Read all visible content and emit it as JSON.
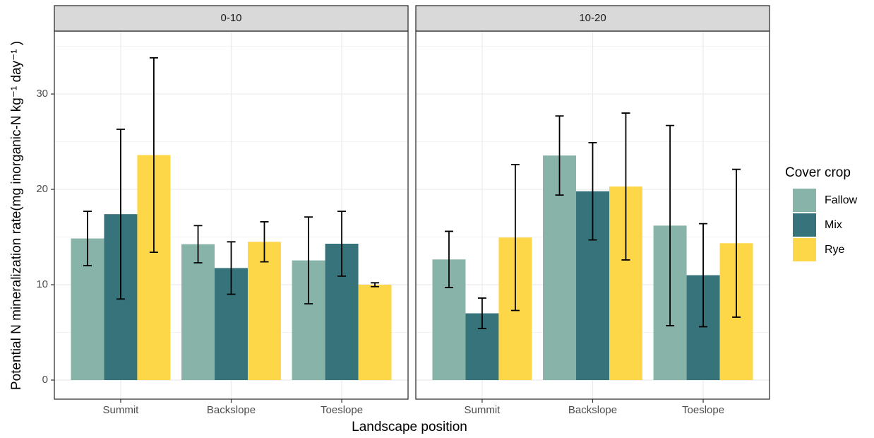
{
  "chart_data": {
    "type": "bar",
    "x_label": "Landscape position",
    "y_label": "Potential N mineralization rate(mg inorganic-N kg⁻¹ day⁻¹ )",
    "legend_title": "Cover crop",
    "categories": [
      "Summit",
      "Backslope",
      "Toeslope"
    ],
    "series": [
      {
        "name": "Fallow",
        "color": "#87b3a8"
      },
      {
        "name": "Mix",
        "color": "#37737b"
      },
      {
        "name": "Rye",
        "color": "#fdd748"
      }
    ],
    "ylim": [
      -2,
      36.6
    ],
    "yticks": [
      0,
      10,
      20,
      30
    ],
    "yminor": [
      5,
      15,
      25,
      35
    ],
    "grid": true,
    "facets": [
      {
        "title": "0-10",
        "series": [
          {
            "values": [
              14.85,
              14.25,
              12.55
            ],
            "errors": [
              2.85,
              1.95,
              4.55
            ]
          },
          {
            "values": [
              17.4,
              11.75,
              14.3
            ],
            "errors": [
              8.9,
              2.75,
              3.4
            ]
          },
          {
            "values": [
              23.6,
              14.5,
              10.0
            ],
            "errors": [
              10.2,
              2.1,
              0.2
            ]
          }
        ]
      },
      {
        "title": "10-20",
        "series": [
          {
            "values": [
              12.65,
              23.55,
              16.2
            ],
            "errors": [
              2.95,
              4.15,
              10.5
            ]
          },
          {
            "values": [
              7.0,
              19.8,
              11.0
            ],
            "errors": [
              1.6,
              5.1,
              5.4
            ]
          },
          {
            "values": [
              14.95,
              20.3,
              14.35
            ],
            "errors": [
              7.65,
              7.7,
              7.75
            ]
          }
        ]
      }
    ]
  }
}
